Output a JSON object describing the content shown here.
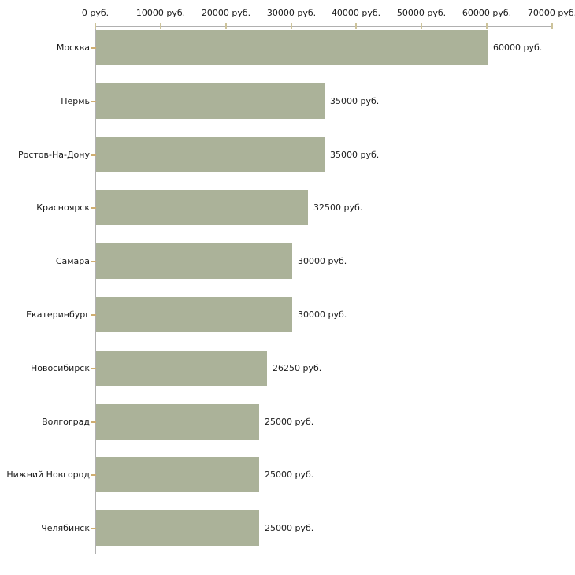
{
  "chart_data": {
    "type": "bar",
    "orientation": "horizontal",
    "title": "",
    "xlabel": "",
    "ylabel": "",
    "units": "руб.",
    "grid": false,
    "legend": null,
    "xlim": [
      0,
      70000
    ],
    "x_ticks": [
      0,
      10000,
      20000,
      30000,
      40000,
      50000,
      60000,
      70000
    ],
    "x_tick_labels": [
      "0 руб.",
      "10000 руб.",
      "20000 руб.",
      "30000 руб.",
      "40000 руб.",
      "50000 руб.",
      "60000 руб.",
      "70000 руб."
    ],
    "categories": [
      "Москва",
      "Пермь",
      "Ростов-На-Дону",
      "Красноярск",
      "Самара",
      "Екатеринбург",
      "Новосибирск",
      "Волгоград",
      "Нижний Новгород",
      "Челябинск"
    ],
    "values": [
      60000,
      35000,
      35000,
      32500,
      30000,
      30000,
      26250,
      25000,
      25000,
      25000
    ],
    "value_labels": [
      "60000 руб.",
      "35000 руб.",
      "35000 руб.",
      "32500 руб.",
      "30000 руб.",
      "30000 руб.",
      "26250 руб.",
      "25000 руб.",
      "25000 руб.",
      "25000 руб."
    ],
    "colors": {
      "bar": "#abb299",
      "axis": "#b0b0b0",
      "axis_tick": "#cdc39a",
      "category_tick": "#cfae72",
      "text": "#1a1a1a",
      "background": "#ffffff"
    }
  }
}
